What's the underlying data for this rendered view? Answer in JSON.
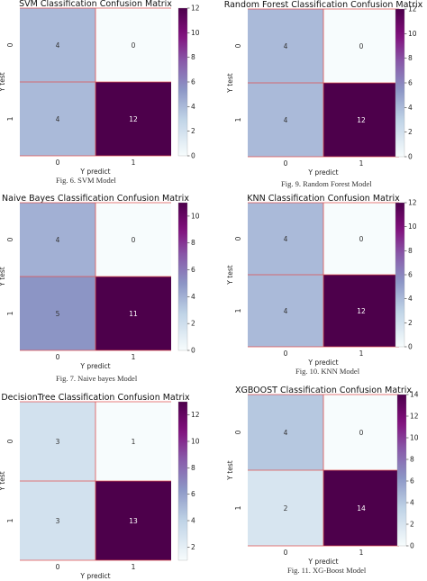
{
  "chart_data": [
    {
      "type": "heatmap",
      "title": "SVM Classification Confusion Matrix",
      "xlabel": "Y predict",
      "ylabel": "Y test",
      "x_ticks": [
        "0",
        "1"
      ],
      "y_ticks": [
        "0",
        "1"
      ],
      "values": [
        [
          4,
          0
        ],
        [
          4,
          12
        ]
      ],
      "colorbar": {
        "min": 0,
        "max": 12,
        "ticks": [
          0,
          2,
          4,
          6,
          8,
          10,
          12
        ]
      },
      "colormap": "BuPu"
    },
    {
      "type": "heatmap",
      "title": "Random Forest Classification Confusion Matrix",
      "xlabel": "Y predict",
      "ylabel": "Y test",
      "x_ticks": [
        "0",
        "1"
      ],
      "y_ticks": [
        "0",
        "1"
      ],
      "values": [
        [
          4,
          0
        ],
        [
          4,
          12
        ]
      ],
      "colorbar": {
        "min": 0,
        "max": 12,
        "ticks": [
          0,
          2,
          4,
          6,
          8,
          10,
          12
        ]
      },
      "colormap": "BuPu"
    },
    {
      "type": "heatmap",
      "title": "Naive Bayes Classification Confusion Matrix",
      "xlabel": "Y predict",
      "ylabel": "Y test",
      "x_ticks": [
        "0",
        "1"
      ],
      "y_ticks": [
        "0",
        "1"
      ],
      "values": [
        [
          4,
          0
        ],
        [
          5,
          11
        ]
      ],
      "colorbar": {
        "min": 0,
        "max": 11,
        "ticks": [
          0,
          2,
          4,
          6,
          8,
          10
        ]
      },
      "colormap": "BuPu"
    },
    {
      "type": "heatmap",
      "title": "KNN Classification Confusion Matrix",
      "xlabel": "Y predict",
      "ylabel": "Y test",
      "x_ticks": [
        "0",
        "1"
      ],
      "y_ticks": [
        "0",
        "1"
      ],
      "values": [
        [
          4,
          0
        ],
        [
          4,
          12
        ]
      ],
      "colorbar": {
        "min": 0,
        "max": 12,
        "ticks": [
          0,
          2,
          4,
          6,
          8,
          10,
          12
        ]
      },
      "colormap": "BuPu"
    },
    {
      "type": "heatmap",
      "title": "DecisionTree Classification Confusion Matrix",
      "xlabel": "Y predict",
      "ylabel": "Y test",
      "x_ticks": [
        "0",
        "1"
      ],
      "y_ticks": [
        "0",
        "1"
      ],
      "values": [
        [
          3,
          1
        ],
        [
          3,
          13
        ]
      ],
      "colorbar": {
        "min": 1,
        "max": 13,
        "ticks": [
          2,
          4,
          6,
          8,
          10,
          12
        ]
      },
      "colormap": "BuPu"
    },
    {
      "type": "heatmap",
      "title": "XGBOOST Classification Confusion Matrix",
      "xlabel": "Y predict",
      "ylabel": "Y test",
      "x_ticks": [
        "0",
        "1"
      ],
      "y_ticks": [
        "0",
        "1"
      ],
      "values": [
        [
          4,
          0
        ],
        [
          2,
          14
        ]
      ],
      "colorbar": {
        "min": 0,
        "max": 14,
        "ticks": [
          0,
          2,
          4,
          6,
          8,
          10,
          12,
          14
        ]
      },
      "colormap": "BuPu"
    }
  ],
  "captions": [
    "Fig. 6.   SVM Model",
    "Fig. 9.   Random Forest Model",
    "Fig. 7.   Naive bayes Model",
    "Fig. 10. KNN Model",
    "Fig. 11. XG-Boost Model"
  ]
}
